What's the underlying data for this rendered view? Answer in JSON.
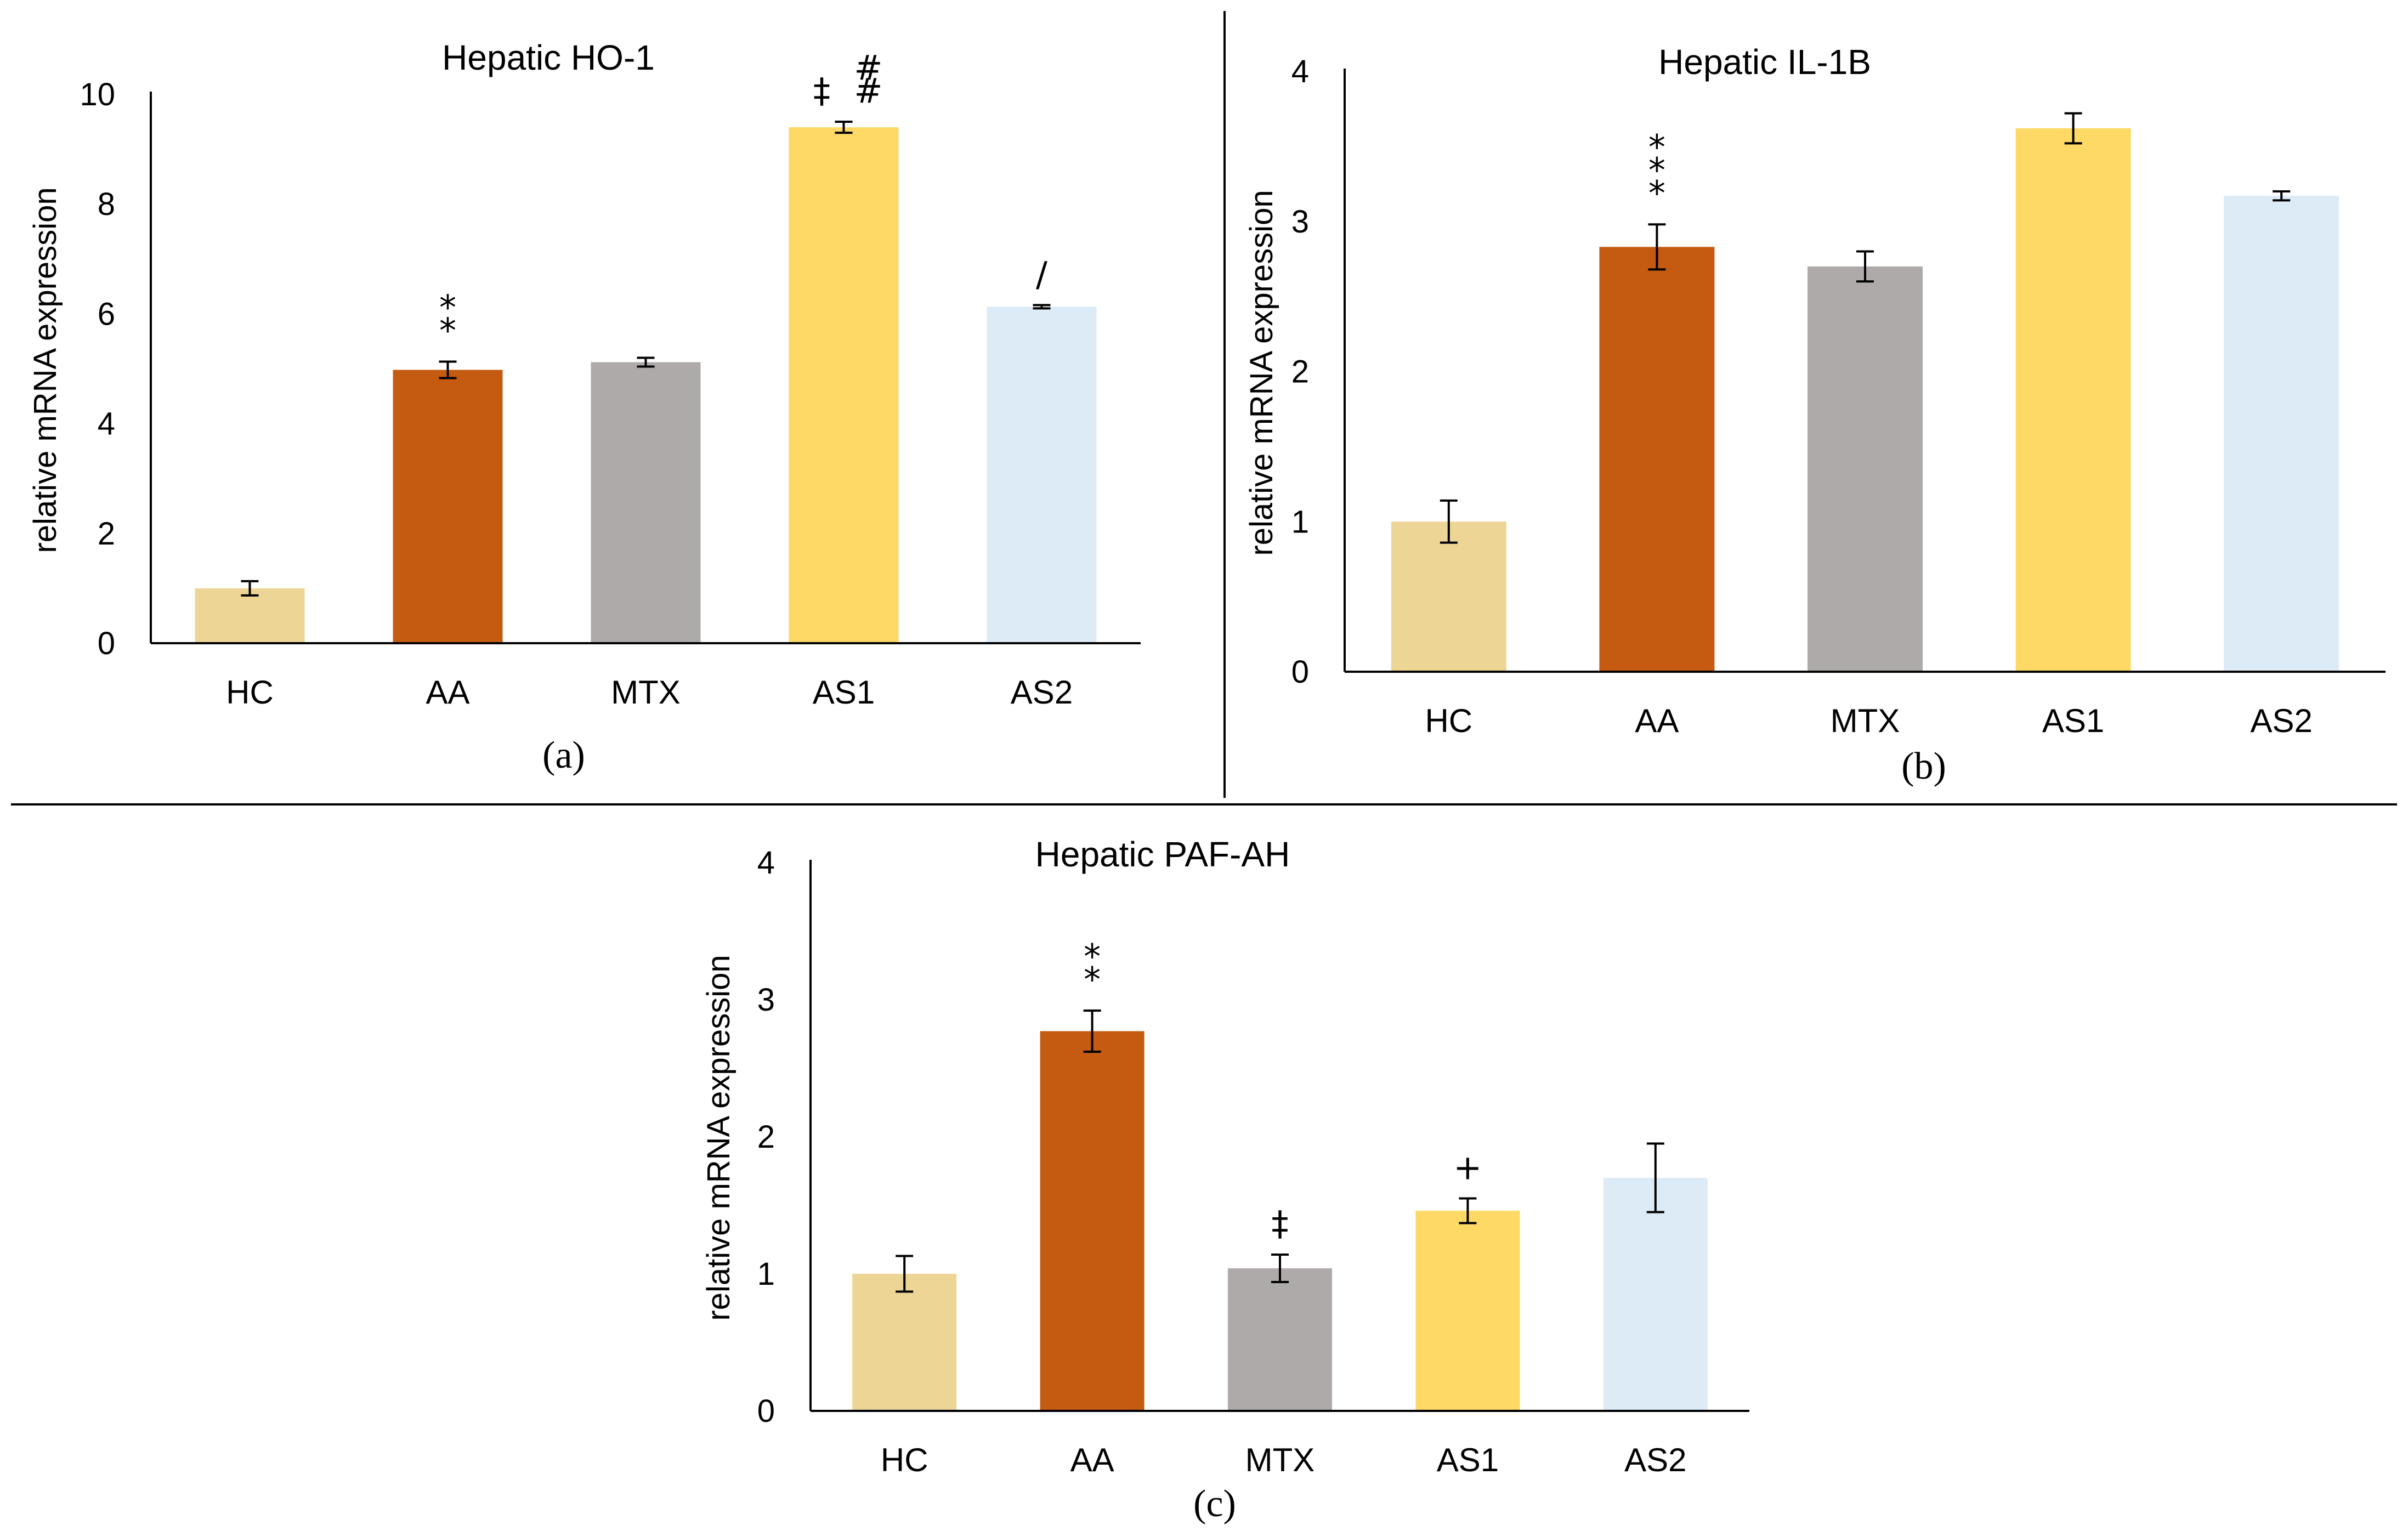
{
  "chart_data": [
    {
      "type": "bar",
      "title": "Hepatic HO-1",
      "ylabel": "relative mRNA expression",
      "xlabel": "",
      "panel_label": "(a)",
      "categories": [
        "HC",
        "AA",
        "MTX",
        "AS1",
        "AS2"
      ],
      "values": [
        1.0,
        4.98,
        5.12,
        9.4,
        6.13
      ],
      "errors": [
        0.13,
        0.15,
        0.08,
        0.1,
        0.03
      ],
      "ylim": [
        0,
        10
      ],
      "yticks": [
        "0",
        "2",
        "4",
        "6",
        "8",
        "10"
      ],
      "significance": [
        "",
        "**",
        "",
        "‡ ##",
        "/"
      ],
      "colors": [
        "#EDD596",
        "#C55A11",
        "#AEAAAA",
        "#FFD966",
        "#DDEBF7"
      ],
      "grid": false,
      "legend": "none"
    },
    {
      "type": "bar",
      "title": "Hepatic IL-1B",
      "ylabel": "relative mRNA expression",
      "xlabel": "",
      "panel_label": "(b)",
      "categories": [
        "HC",
        "AA",
        "MTX",
        "AS1",
        "AS2"
      ],
      "values": [
        1.0,
        2.83,
        2.7,
        3.62,
        3.17
      ],
      "errors": [
        0.14,
        0.15,
        0.1,
        0.1,
        0.03
      ],
      "ylim": [
        0,
        4
      ],
      "yticks": [
        "0",
        "1",
        "2",
        "3",
        "4"
      ],
      "significance": [
        "",
        "***",
        "",
        "",
        ""
      ],
      "colors": [
        "#EDD596",
        "#C55A11",
        "#AEAAAA",
        "#FFD966",
        "#DDEBF7"
      ],
      "grid": false,
      "legend": "none"
    },
    {
      "type": "bar",
      "title": "Hepatic PAF-AH",
      "ylabel": "relative mRNA expression",
      "xlabel": "",
      "panel_label": "(c)",
      "categories": [
        "HC",
        "AA",
        "MTX",
        "AS1",
        "AS2"
      ],
      "values": [
        1.0,
        2.77,
        1.04,
        1.46,
        1.7
      ],
      "errors": [
        0.13,
        0.15,
        0.1,
        0.09,
        0.25
      ],
      "ylim": [
        0,
        4
      ],
      "yticks": [
        "0",
        "1",
        "2",
        "3",
        "4"
      ],
      "significance": [
        "",
        "**",
        "‡",
        "+",
        ""
      ],
      "colors": [
        "#EDD596",
        "#C55A11",
        "#AEAAAA",
        "#FFD966",
        "#DDEBF7"
      ],
      "grid": false,
      "legend": "none"
    }
  ]
}
